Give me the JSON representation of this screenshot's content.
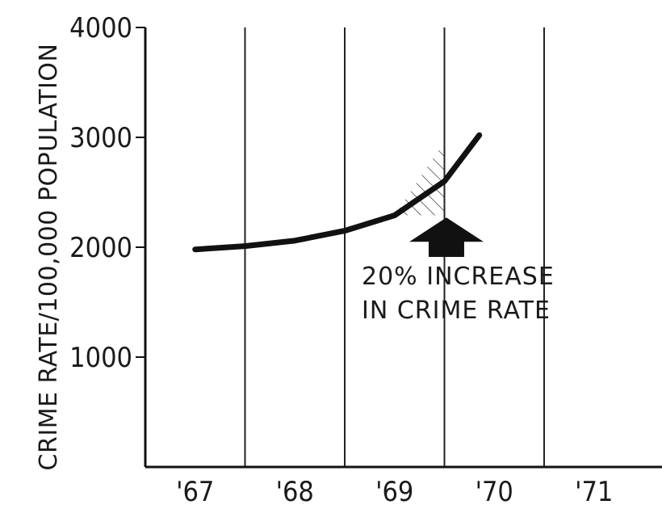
{
  "chart_data": {
    "type": "line",
    "title": "",
    "xlabel": "",
    "ylabel": "CRIME RATE/100,000 POPULATION",
    "categories": [
      "'67",
      "'68",
      "'69",
      "'70",
      "'71"
    ],
    "x_range": [
      1967,
      1971
    ],
    "ylim": [
      0,
      4000
    ],
    "y_ticks": [
      1000,
      2000,
      3000,
      4000
    ],
    "grid": "vertical",
    "series": [
      {
        "x": [
          1967,
          1967.5,
          1968,
          1968.5,
          1969,
          1969.5,
          1969.85
        ],
        "y": [
          1980,
          2010,
          2060,
          2150,
          2290,
          2600,
          3020
        ]
      }
    ],
    "annotations": [
      {
        "text_line1": "20% INCREASE",
        "text_line2": "IN CRIME RATE",
        "arrow_at_x": 1970,
        "shaded_region_x": [
          1969,
          1970
        ]
      }
    ]
  }
}
